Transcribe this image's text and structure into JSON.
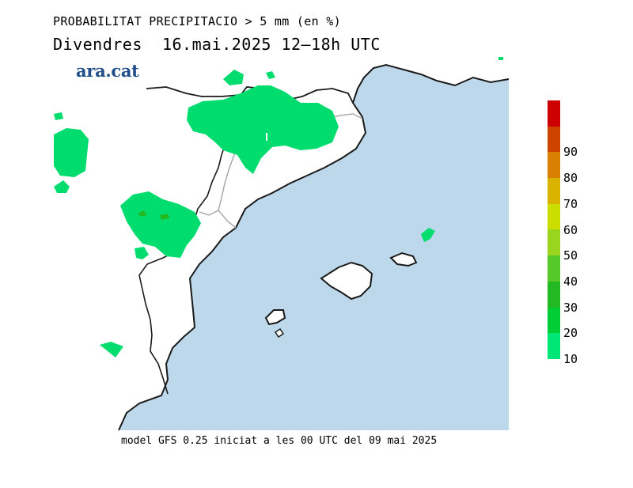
{
  "header": {
    "title": "PROBABILITAT PRECIPITACIO > 5 mm (en %)",
    "subtitle": "Divendres  16.mai.2025 12–18h UTC"
  },
  "brand": {
    "name": "ara.cat",
    "color": "#1f4e8a"
  },
  "footer": {
    "caption": "model GFS 0.25 iniciat a les 00 UTC del 09 mai 2025"
  },
  "map": {
    "sea_color": "#bed8eb",
    "land_color": "#ffffff",
    "region": "Catalunya, País Valencià i Illes Balears",
    "precip_areas_color": "#00dd6e"
  },
  "legend": {
    "ticks": [
      "10",
      "20",
      "30",
      "40",
      "50",
      "60",
      "70",
      "80",
      "90"
    ],
    "colors": [
      "#00e676",
      "#00cc33",
      "#22b922",
      "#55c82a",
      "#99d41e",
      "#ccdd00",
      "#d9b300",
      "#d98000",
      "#cc4400",
      "#cc0000"
    ]
  }
}
